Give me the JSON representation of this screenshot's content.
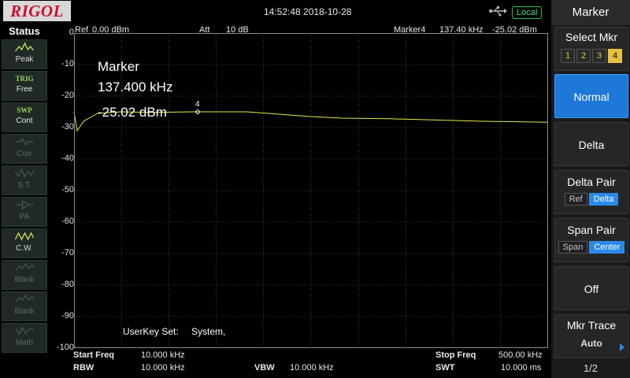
{
  "header": {
    "brand": "RIGOL",
    "datetime": "14:52:48 2018-10-28",
    "local_label": "Local",
    "usb_icon": "usb-icon"
  },
  "status_panel": {
    "title": "Status",
    "buttons": [
      {
        "label": "Peak",
        "state": "on"
      },
      {
        "line1": "TRIG",
        "line2": "Free"
      },
      {
        "line1": "SWP",
        "line2": "Cont"
      },
      {
        "label": "Corr",
        "state": "dim"
      },
      {
        "label": "S.T.",
        "state": "dim"
      },
      {
        "label": "PA",
        "state": "dim"
      },
      {
        "label": "C.W.",
        "state": "on"
      },
      {
        "label": "Blank",
        "state": "dim"
      },
      {
        "label": "Blank",
        "state": "dim"
      },
      {
        "label": "Math",
        "state": "dim"
      }
    ]
  },
  "display": {
    "ref_label": "Ref",
    "ref_value": "0.00 dBm",
    "att_label": "Att",
    "att_value": "10 dB",
    "marker_header": "Marker4",
    "marker_header_freq": "137.40 kHz",
    "marker_header_amp": "-25.02 dBm",
    "marker_title": "Marker",
    "marker_freq": "137.400 kHz",
    "marker_amp": "-25.02 dBm",
    "marker_tag": "4",
    "userkey_label": "UserKey Set:",
    "userkey_value": "System,",
    "y_ticks": [
      "0",
      "-10",
      "-20",
      "-30",
      "-40",
      "-50",
      "-60",
      "-70",
      "-80",
      "-90",
      "-100"
    ]
  },
  "footer": {
    "start_label": "Start Freq",
    "start_value": "10.000 kHz",
    "stop_label": "Stop Freq",
    "stop_value": "500.00 kHz",
    "rbw_label": "RBW",
    "rbw_value": "10.000 kHz",
    "vbw_label": "VBW",
    "vbw_value": "10.000 kHz",
    "swt_label": "SWT",
    "swt_value": "10.000 ms"
  },
  "menu": {
    "title": "Marker",
    "select_mkr_label": "Select Mkr",
    "markers": [
      "1",
      "2",
      "3",
      "4"
    ],
    "active_marker": "4",
    "normal_label": "Normal",
    "delta_label": "Delta",
    "delta_pair_label": "Delta Pair",
    "delta_pair_opts": [
      "Ref",
      "Delta"
    ],
    "span_pair_label": "Span Pair",
    "span_pair_opts": [
      "Span",
      "Center"
    ],
    "off_label": "Off",
    "mkr_trace_label": "Mkr Trace",
    "mkr_trace_value": "Auto",
    "page": "1/2"
  },
  "colors": {
    "trace": "#e8e84a",
    "grid": "#6a6a6a",
    "accent": "#1e78d8"
  }
}
